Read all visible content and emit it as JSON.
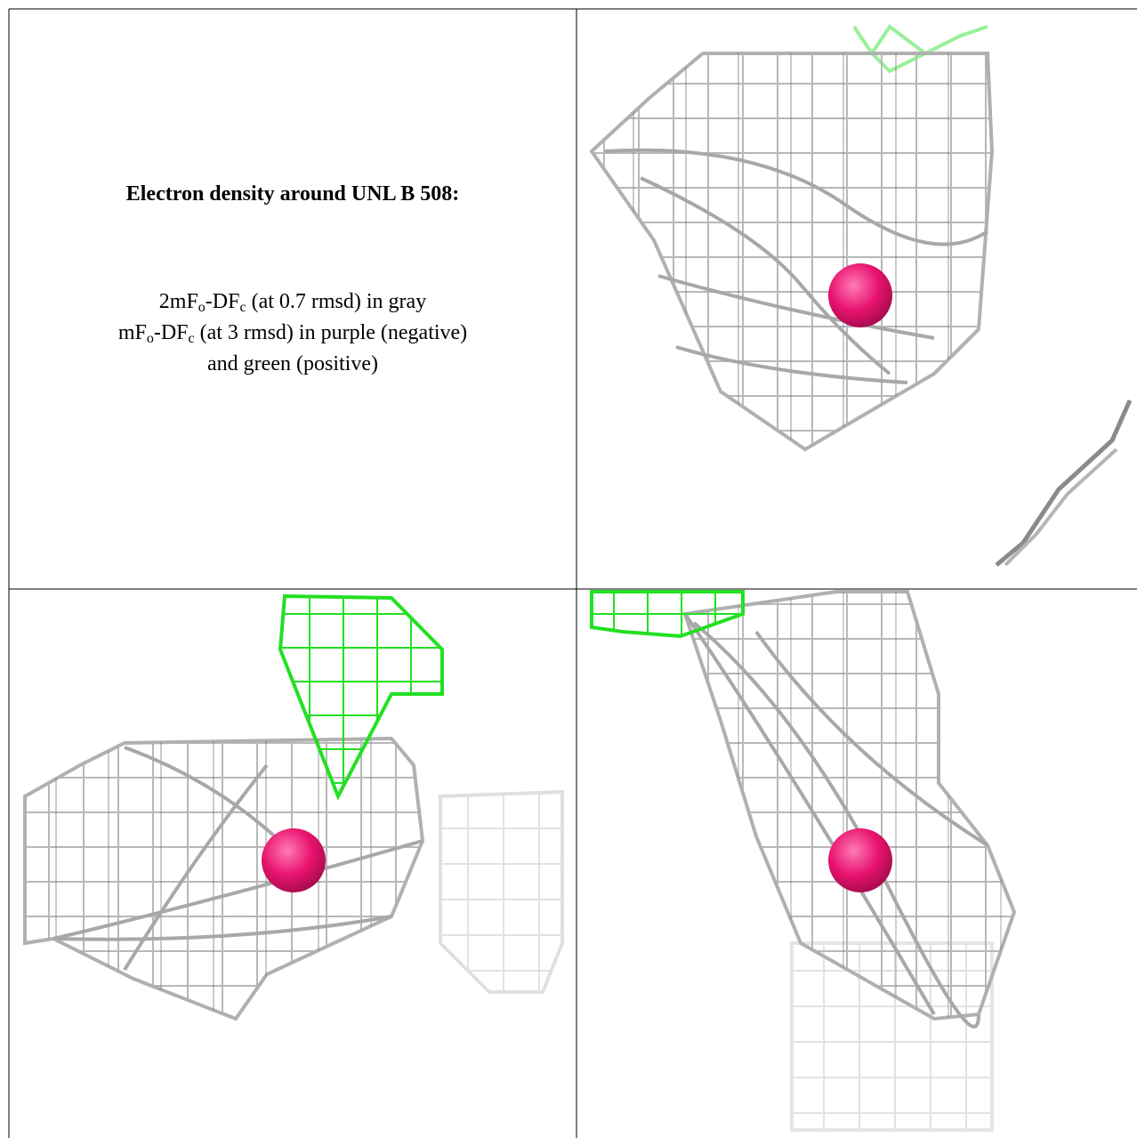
{
  "title": "Electron density around UNL B 508:",
  "legend": [
    [
      "2mF",
      "o",
      "-DF",
      "c",
      " (at 0.7 rmsd) in gray"
    ],
    [
      "mF",
      "o",
      "-DF",
      "c",
      " (at 3 rmsd) in purple (negative)"
    ],
    [
      "and green (positive)"
    ]
  ]
}
